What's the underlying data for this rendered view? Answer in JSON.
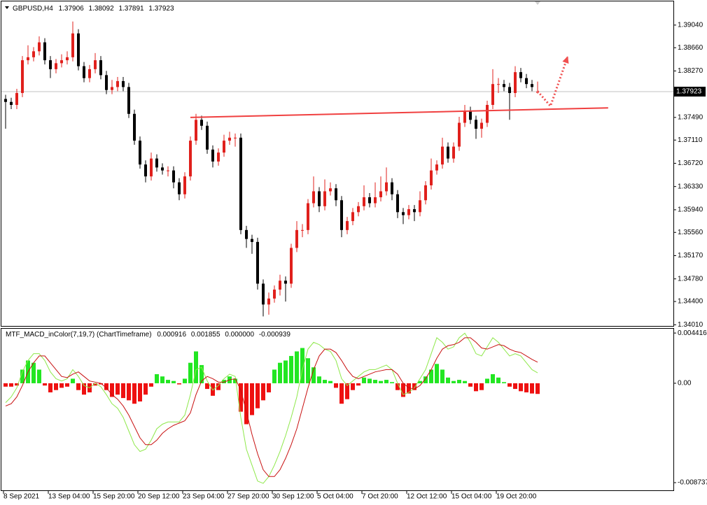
{
  "chart_data": [
    {
      "type": "candlestick",
      "symbol": "GBPUSD,H4",
      "categories": [
        "8 Sep 2021",
        null,
        null,
        null,
        null,
        null,
        null,
        null,
        "13 Sep 04:00",
        null,
        null,
        null,
        null,
        null,
        null,
        null,
        "15 Sep 20:00",
        null,
        null,
        null,
        null,
        null,
        null,
        null,
        "20 Sep 12:00",
        null,
        null,
        null,
        null,
        null,
        null,
        null,
        "23 Sep 04:00",
        null,
        null,
        null,
        null,
        null,
        null,
        null,
        "27 Sep 20:00",
        null,
        null,
        null,
        null,
        null,
        null,
        null,
        "30 Sep 12:00",
        null,
        null,
        null,
        null,
        null,
        null,
        null,
        "5 Oct 04:00",
        null,
        null,
        null,
        null,
        null,
        null,
        null,
        "7 Oct 20:00",
        null,
        null,
        null,
        null,
        null,
        null,
        null,
        "12 Oct 12:00",
        null,
        null,
        null,
        null,
        null,
        null,
        null,
        "15 Oct 04:00",
        null,
        null,
        null,
        null,
        null,
        null,
        null,
        "19 Oct 20:00",
        null,
        null,
        null,
        null,
        null,
        null,
        null
      ],
      "open": [
        1.378,
        1.3775,
        1.377,
        1.379,
        1.3845,
        1.385,
        1.386,
        1.3875,
        1.3845,
        1.383,
        1.384,
        1.3845,
        1.385,
        1.389,
        1.3835,
        1.3815,
        1.383,
        1.3845,
        1.382,
        1.3795,
        1.38,
        1.381,
        1.38,
        1.3755,
        1.371,
        1.367,
        1.365,
        1.368,
        1.3665,
        1.366,
        1.366,
        1.364,
        1.362,
        1.365,
        1.371,
        1.3745,
        1.3735,
        1.3695,
        1.3675,
        1.369,
        1.371,
        1.3715,
        1.3715,
        1.356,
        1.3545,
        1.354,
        1.347,
        1.3435,
        1.3445,
        1.346,
        1.3475,
        1.347,
        1.353,
        1.356,
        1.356,
        1.3605,
        1.3625,
        1.36,
        1.3625,
        1.363,
        1.361,
        1.356,
        1.3575,
        1.359,
        1.36,
        1.3615,
        1.3605,
        1.3615,
        1.3625,
        1.364,
        1.362,
        1.359,
        1.3585,
        1.3595,
        1.359,
        1.361,
        1.3635,
        1.366,
        1.367,
        1.37,
        1.368,
        1.37,
        1.374,
        1.376,
        1.3745,
        1.373,
        1.374,
        1.377,
        1.3805,
        1.3805,
        1.38,
        1.379,
        1.3825,
        1.3815,
        1.3805,
        1.37906
      ],
      "high": [
        1.3787,
        1.3782,
        1.3797,
        1.3852,
        1.387,
        1.3867,
        1.3885,
        1.3882,
        1.3852,
        1.3847,
        1.3855,
        1.386,
        1.391,
        1.3897,
        1.3842,
        1.3837,
        1.3857,
        1.3852,
        1.3827,
        1.3812,
        1.3817,
        1.3817,
        1.3807,
        1.3762,
        1.3717,
        1.3677,
        1.369,
        1.3687,
        1.3672,
        1.3667,
        1.3667,
        1.3647,
        1.3657,
        1.3717,
        1.3755,
        1.3752,
        1.3742,
        1.3702,
        1.3697,
        1.372,
        1.3725,
        1.3722,
        1.3722,
        1.3567,
        1.3552,
        1.3547,
        1.3477,
        1.3455,
        1.3467,
        1.3485,
        1.3482,
        1.3537,
        1.3575,
        1.357,
        1.3612,
        1.365,
        1.3632,
        1.3645,
        1.364,
        1.3637,
        1.3617,
        1.3582,
        1.3597,
        1.3607,
        1.3635,
        1.3622,
        1.364,
        1.365,
        1.3665,
        1.3647,
        1.3627,
        1.3597,
        1.3602,
        1.3602,
        1.3625,
        1.3642,
        1.368,
        1.3677,
        1.3715,
        1.3707,
        1.3707,
        1.375,
        1.377,
        1.3767,
        1.3752,
        1.3747,
        1.3777,
        1.383,
        1.3815,
        1.3812,
        1.3807,
        1.3835,
        1.3832,
        1.3822,
        1.3812,
        1.38092
      ],
      "low": [
        1.373,
        1.3763,
        1.3763,
        1.3783,
        1.3838,
        1.3843,
        1.3853,
        1.3838,
        1.3815,
        1.3823,
        1.3833,
        1.3838,
        1.3843,
        1.3828,
        1.3808,
        1.3808,
        1.3823,
        1.3813,
        1.3788,
        1.3788,
        1.3793,
        1.3793,
        1.3748,
        1.3703,
        1.3663,
        1.364,
        1.3643,
        1.3658,
        1.3653,
        1.365,
        1.363,
        1.361,
        1.3613,
        1.3643,
        1.3703,
        1.3728,
        1.3688,
        1.3665,
        1.3668,
        1.3683,
        1.3703,
        1.37,
        1.3553,
        1.353,
        1.352,
        1.346,
        1.3415,
        1.3418,
        1.3438,
        1.345,
        1.344,
        1.3463,
        1.3523,
        1.3548,
        1.3553,
        1.3598,
        1.359,
        1.3593,
        1.3618,
        1.36,
        1.3548,
        1.3553,
        1.3568,
        1.3583,
        1.3593,
        1.3598,
        1.3598,
        1.3608,
        1.3618,
        1.361,
        1.358,
        1.357,
        1.3578,
        1.3575,
        1.3583,
        1.3603,
        1.3628,
        1.3653,
        1.3663,
        1.3673,
        1.3673,
        1.3693,
        1.3733,
        1.3738,
        1.3713,
        1.3715,
        1.3733,
        1.3763,
        1.379,
        1.3793,
        1.3745,
        1.3783,
        1.3808,
        1.3798,
        1.3793,
        1.37891
      ],
      "close": [
        1.3775,
        1.377,
        1.379,
        1.3845,
        1.385,
        1.386,
        1.3875,
        1.3845,
        1.383,
        1.384,
        1.3845,
        1.385,
        1.389,
        1.3835,
        1.3815,
        1.383,
        1.3845,
        1.382,
        1.3795,
        1.38,
        1.381,
        1.38,
        1.3755,
        1.371,
        1.367,
        1.365,
        1.368,
        1.3665,
        1.366,
        1.366,
        1.364,
        1.362,
        1.365,
        1.371,
        1.3745,
        1.3735,
        1.3695,
        1.3675,
        1.369,
        1.371,
        1.3715,
        1.3715,
        1.356,
        1.3545,
        1.354,
        1.347,
        1.3435,
        1.3445,
        1.346,
        1.3475,
        1.347,
        1.353,
        1.356,
        1.356,
        1.3605,
        1.3625,
        1.36,
        1.3625,
        1.363,
        1.361,
        1.356,
        1.3575,
        1.359,
        1.36,
        1.3615,
        1.3605,
        1.3615,
        1.3625,
        1.364,
        1.362,
        1.359,
        1.3585,
        1.3595,
        1.359,
        1.361,
        1.3635,
        1.366,
        1.367,
        1.37,
        1.368,
        1.37,
        1.374,
        1.376,
        1.3745,
        1.373,
        1.374,
        1.377,
        1.3805,
        1.3805,
        1.38,
        1.379,
        1.3825,
        1.3815,
        1.3805,
        1.38,
        1.37923
      ],
      "up_color": "#e0201c",
      "down_color": "#000000",
      "ylim": [
        1.3399,
        1.3932
      ],
      "yticks": [
        {
          "value": 1.3904,
          "label": "1.39040"
        },
        {
          "value": 1.3866,
          "label": "1.38660"
        },
        {
          "value": 1.3827,
          "label": "1.38270"
        },
        {
          "value": 1.3749,
          "label": "1.37490"
        },
        {
          "value": 1.3711,
          "label": "1.37110"
        },
        {
          "value": 1.3672,
          "label": "1.36720"
        },
        {
          "value": 1.3633,
          "label": "1.36330"
        },
        {
          "value": 1.3594,
          "label": "1.35940"
        },
        {
          "value": 1.3556,
          "label": "1.35560"
        },
        {
          "value": 1.3517,
          "label": "1.35170"
        },
        {
          "value": 1.3478,
          "label": "1.34780"
        },
        {
          "value": 1.344,
          "label": "1.34400"
        },
        {
          "value": 1.3401,
          "label": "1.34010"
        }
      ],
      "trendline": {
        "color": "#f04040",
        "x": [
          33,
          107.6
        ],
        "y": [
          1.3749,
          1.3765
        ]
      },
      "projection": {
        "color": "#f05050",
        "x": [
          95,
          97.3,
          100.4
        ],
        "y": [
          1.3793,
          1.3768,
          1.3852
        ]
      }
    },
    {
      "type": "macd",
      "title": "MTF_MACD_inColor(7,19,7) (ChartTimeframe)",
      "series": [
        {
          "color": "#8ee84a",
          "values": [
            -0.0017,
            -0.0012,
            -0.0004,
            0.001,
            0.002,
            0.0026,
            0.0026,
            0.002,
            0.001,
            0.0004,
            0.0002,
            0.0004,
            0.0012,
            0.0006,
            -0.0002,
            -0.0004,
            0.0,
            -0.0003,
            -0.001,
            -0.0018,
            -0.0022,
            -0.003,
            -0.0042,
            -0.0054,
            -0.006,
            -0.0058,
            -0.005,
            -0.004,
            -0.0036,
            -0.0034,
            -0.0034,
            -0.0034,
            -0.0028,
            -0.001,
            0.0012,
            0.0014,
            0.0002,
            -0.0006,
            -0.0002,
            0.0004,
            0.0008,
            0.0006,
            -0.003,
            -0.0058,
            -0.0072,
            -0.0086,
            -0.0088,
            -0.0082,
            -0.0072,
            -0.006,
            -0.0046,
            -0.003,
            -0.0012,
            0.0012,
            0.003,
            0.0036,
            0.0034,
            0.003,
            0.0028,
            0.002,
            0.0004,
            -0.0002,
            0.0002,
            0.0006,
            0.001,
            0.0012,
            0.0012,
            0.0014,
            0.0016,
            0.0012,
            0.0,
            -0.001,
            -0.0008,
            -0.0004,
            0.0004,
            0.0012,
            0.0026,
            0.004,
            0.0036,
            0.003,
            0.0032,
            0.004,
            0.0044,
            0.0036,
            0.0026,
            0.0024,
            0.0032,
            0.004,
            0.0036,
            0.003,
            0.0024,
            0.0026,
            0.0024,
            0.0018,
            0.0012,
            0.000916
          ]
        },
        {
          "color": "#c81010",
          "values": [
            -0.002,
            -0.0018,
            -0.0012,
            -0.0002,
            0.001,
            0.0018,
            0.0024,
            0.0024,
            0.0018,
            0.0012,
            0.0006,
            0.0005,
            0.0008,
            0.001,
            0.0006,
            0.0002,
            0.0001,
            0.0,
            -0.0004,
            -0.001,
            -0.0014,
            -0.002,
            -0.0028,
            -0.0038,
            -0.0048,
            -0.0054,
            -0.0054,
            -0.005,
            -0.0044,
            -0.004,
            -0.0037,
            -0.0035,
            -0.0033,
            -0.0026,
            -0.001,
            0.0002,
            0.0006,
            0.0004,
            0.0001,
            0.0001,
            0.0003,
            0.0004,
            -0.0006,
            -0.0025,
            -0.0045,
            -0.0062,
            -0.0076,
            -0.0082,
            -0.0082,
            -0.0076,
            -0.0066,
            -0.0054,
            -0.004,
            -0.0022,
            -0.0004,
            0.0012,
            0.0024,
            0.003,
            0.003,
            0.0027,
            0.002,
            0.0012,
            0.0006,
            0.0004,
            0.0006,
            0.0008,
            0.001,
            0.0011,
            0.0012,
            0.0012,
            0.0008,
            0.0,
            -0.0004,
            -0.0005,
            -0.0002,
            0.0004,
            0.0012,
            0.0022,
            0.003,
            0.0033,
            0.0034,
            0.0036,
            0.004,
            0.004,
            0.0036,
            0.0031,
            0.003,
            0.0032,
            0.0034,
            0.0033,
            0.003,
            0.0028,
            0.0027,
            0.0024,
            0.0021,
            0.001855
          ]
        }
      ],
      "idle_buffer": {
        "value": 0,
        "label": "0.000000"
      },
      "histogram": {
        "up_color": "#22e622",
        "down_color": "#ee1111",
        "values": [
          -0.0003,
          -0.0003,
          -0.0002,
          0.0012,
          0.002,
          0.0018,
          0.0012,
          -0.0002,
          -0.0008,
          -0.0006,
          -0.0004,
          -0.0003,
          0.0004,
          -0.0006,
          -0.001,
          -0.0008,
          -0.0002,
          -0.0001,
          -0.0006,
          -0.0012,
          -0.001,
          -0.0013,
          -0.0015,
          -0.0018,
          -0.0016,
          -0.001,
          -0.0003,
          0.0008,
          0.0006,
          0.0003,
          0.0002,
          -0.0001,
          0.0004,
          0.0018,
          0.0028,
          0.0016,
          -0.0005,
          -0.0011,
          -0.0006,
          0.0003,
          0.0006,
          0.0004,
          -0.0025,
          -0.0036,
          -0.0028,
          -0.0022,
          -0.0015,
          -0.0008,
          0.0012,
          0.0018,
          0.002,
          0.0024,
          0.0028,
          0.0031,
          0.0022,
          0.0014,
          0.0006,
          0.0003,
          0.0002,
          -0.0004,
          -0.0018,
          -0.0014,
          -0.0006,
          -0.0002,
          0.0005,
          0.0004,
          0.0003,
          0.0002,
          0.0003,
          0.0001,
          -0.0006,
          -0.0012,
          -0.0009,
          -0.0006,
          0.0002,
          0.0006,
          0.0012,
          0.0017,
          0.0012,
          0.0005,
          0.0002,
          0.0003,
          0.0002,
          -0.0003,
          -0.0007,
          -0.0006,
          0.0004,
          0.0008,
          0.0005,
          0.0001,
          -0.0003,
          -0.0005,
          -0.0007,
          -0.0008,
          -0.0009,
          -0.000939
        ]
      },
      "ylim": [
        -0.00935,
        0.00467
      ],
      "yticks": [
        0.004416,
        {
          "value": 0,
          "label": "0.00"
        },
        -0.008737
      ]
    }
  ]
}
